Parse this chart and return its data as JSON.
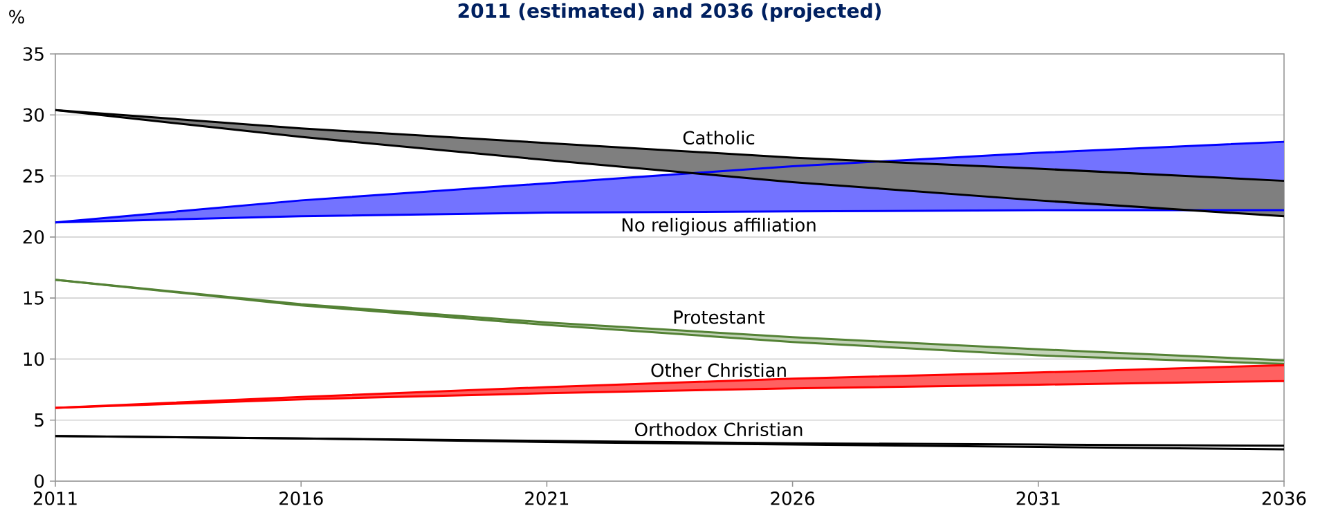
{
  "chart_data": {
    "type": "line",
    "title": "2011 (estimated) and 2036 (projected)",
    "ylabel": "%",
    "x": [
      2011,
      2016,
      2021,
      2026,
      2031,
      2036
    ],
    "series": [
      {
        "color": "#0000ff",
        "values": [
          21.2,
          23.0,
          24.4,
          25.8,
          26.9,
          27.8
        ]
      },
      {
        "name": "No religious affiliation",
        "color": "#0000ff",
        "values": [
          21.2,
          21.7,
          22.0,
          22.1,
          22.2,
          22.2
        ]
      },
      {
        "name": "Catholic",
        "color": "#000000",
        "values": [
          30.4,
          28.9,
          27.7,
          26.5,
          25.6,
          24.6
        ]
      },
      {
        "color": "#000000",
        "values": [
          30.4,
          28.2,
          26.3,
          24.5,
          23.0,
          21.7
        ]
      },
      {
        "name": "Protestant",
        "color": "#548235",
        "values": [
          16.5,
          14.5,
          13.0,
          11.8,
          10.8,
          9.9
        ]
      },
      {
        "color": "#548235",
        "values": [
          16.5,
          14.4,
          12.8,
          11.4,
          10.3,
          9.6
        ]
      },
      {
        "name": "Other Christian",
        "color": "#ff0000",
        "values": [
          6.0,
          6.9,
          7.7,
          8.4,
          8.9,
          9.5
        ]
      },
      {
        "color": "#ff0000",
        "values": [
          6.0,
          6.7,
          7.2,
          7.6,
          7.9,
          8.2
        ]
      },
      {
        "name": "Orthodox Christian",
        "color": "#000000",
        "values": [
          3.7,
          3.5,
          3.3,
          3.1,
          3.0,
          2.9
        ]
      },
      {
        "color": "#000000",
        "values": [
          3.7,
          3.5,
          3.2,
          3.0,
          2.8,
          2.6
        ]
      }
    ],
    "xlim": [
      2011,
      2036
    ],
    "xticks": [
      2011,
      2016,
      2021,
      2026,
      2031,
      2036
    ],
    "ylim": [
      0,
      35
    ],
    "yticks": [
      0,
      5,
      10,
      15,
      20,
      25,
      30,
      35
    ],
    "grid": "y"
  }
}
